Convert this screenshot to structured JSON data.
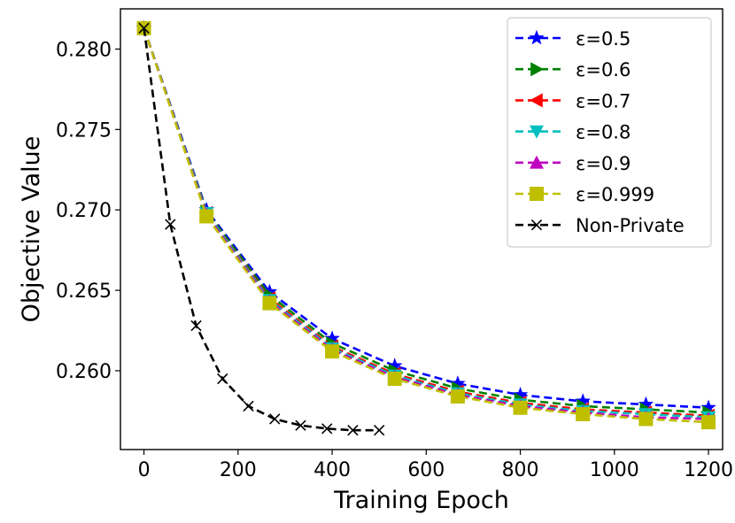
{
  "chart_data": {
    "type": "line",
    "xlabel": "Training Epoch",
    "ylabel": "Objective Value",
    "xlim": [
      -50,
      1230
    ],
    "ylim": [
      0.2551,
      0.2825
    ],
    "xticks": [
      0,
      200,
      400,
      600,
      800,
      1000,
      1200
    ],
    "yticks": [
      0.26,
      0.265,
      0.27,
      0.275,
      0.28
    ],
    "ytick_labels": [
      "0.260",
      "0.265",
      "0.270",
      "0.275",
      "0.280"
    ],
    "grid": false,
    "legend_position": "top-right",
    "series": [
      {
        "name": "ε=0.5",
        "color": "#0000ff",
        "marker": "star",
        "x": [
          0,
          133,
          267,
          400,
          533,
          667,
          800,
          933,
          1067,
          1200
        ],
        "y": [
          0.2813,
          0.27,
          0.2649,
          0.262,
          0.2603,
          0.2592,
          0.2585,
          0.2581,
          0.2579,
          0.2577
        ]
      },
      {
        "name": "ε=0.6",
        "color": "#008000",
        "marker": "triangle-right",
        "x": [
          0,
          133,
          267,
          400,
          533,
          667,
          800,
          933,
          1067,
          1200
        ],
        "y": [
          0.2813,
          0.2699,
          0.2647,
          0.2617,
          0.26,
          0.2589,
          0.2582,
          0.2578,
          0.2576,
          0.2574
        ]
      },
      {
        "name": "ε=0.7",
        "color": "#ff0000",
        "marker": "triangle-left",
        "x": [
          0,
          133,
          267,
          400,
          533,
          667,
          800,
          933,
          1067,
          1200
        ],
        "y": [
          0.2813,
          0.2698,
          0.2645,
          0.2615,
          0.2598,
          0.2587,
          0.258,
          0.2576,
          0.2574,
          0.2572
        ]
      },
      {
        "name": "ε=0.8",
        "color": "#00bfbf",
        "marker": "triangle-down",
        "x": [
          0,
          133,
          267,
          400,
          533,
          667,
          800,
          933,
          1067,
          1200
        ],
        "y": [
          0.2813,
          0.2698,
          0.2644,
          0.2614,
          0.2597,
          0.2586,
          0.2579,
          0.2575,
          0.2573,
          0.2571
        ]
      },
      {
        "name": "ε=0.9",
        "color": "#bf00bf",
        "marker": "triangle-up",
        "x": [
          0,
          133,
          267,
          400,
          533,
          667,
          800,
          933,
          1067,
          1200
        ],
        "y": [
          0.2813,
          0.2697,
          0.2643,
          0.2613,
          0.2596,
          0.2585,
          0.2578,
          0.2574,
          0.2571,
          0.257
        ]
      },
      {
        "name": "ε=0.999",
        "color": "#bfbf00",
        "marker": "square",
        "x": [
          0,
          133,
          267,
          400,
          533,
          667,
          800,
          933,
          1067,
          1200
        ],
        "y": [
          0.2813,
          0.2696,
          0.2642,
          0.2612,
          0.2595,
          0.2584,
          0.2577,
          0.2573,
          0.257,
          0.2568
        ]
      },
      {
        "name": "Non-Private",
        "color": "#000000",
        "marker": "x",
        "x": [
          0,
          56,
          111,
          167,
          222,
          278,
          333,
          389,
          444,
          500
        ],
        "y": [
          0.2813,
          0.2691,
          0.2628,
          0.2595,
          0.2578,
          0.257,
          0.2566,
          0.2564,
          0.2563,
          0.2563
        ]
      }
    ]
  }
}
